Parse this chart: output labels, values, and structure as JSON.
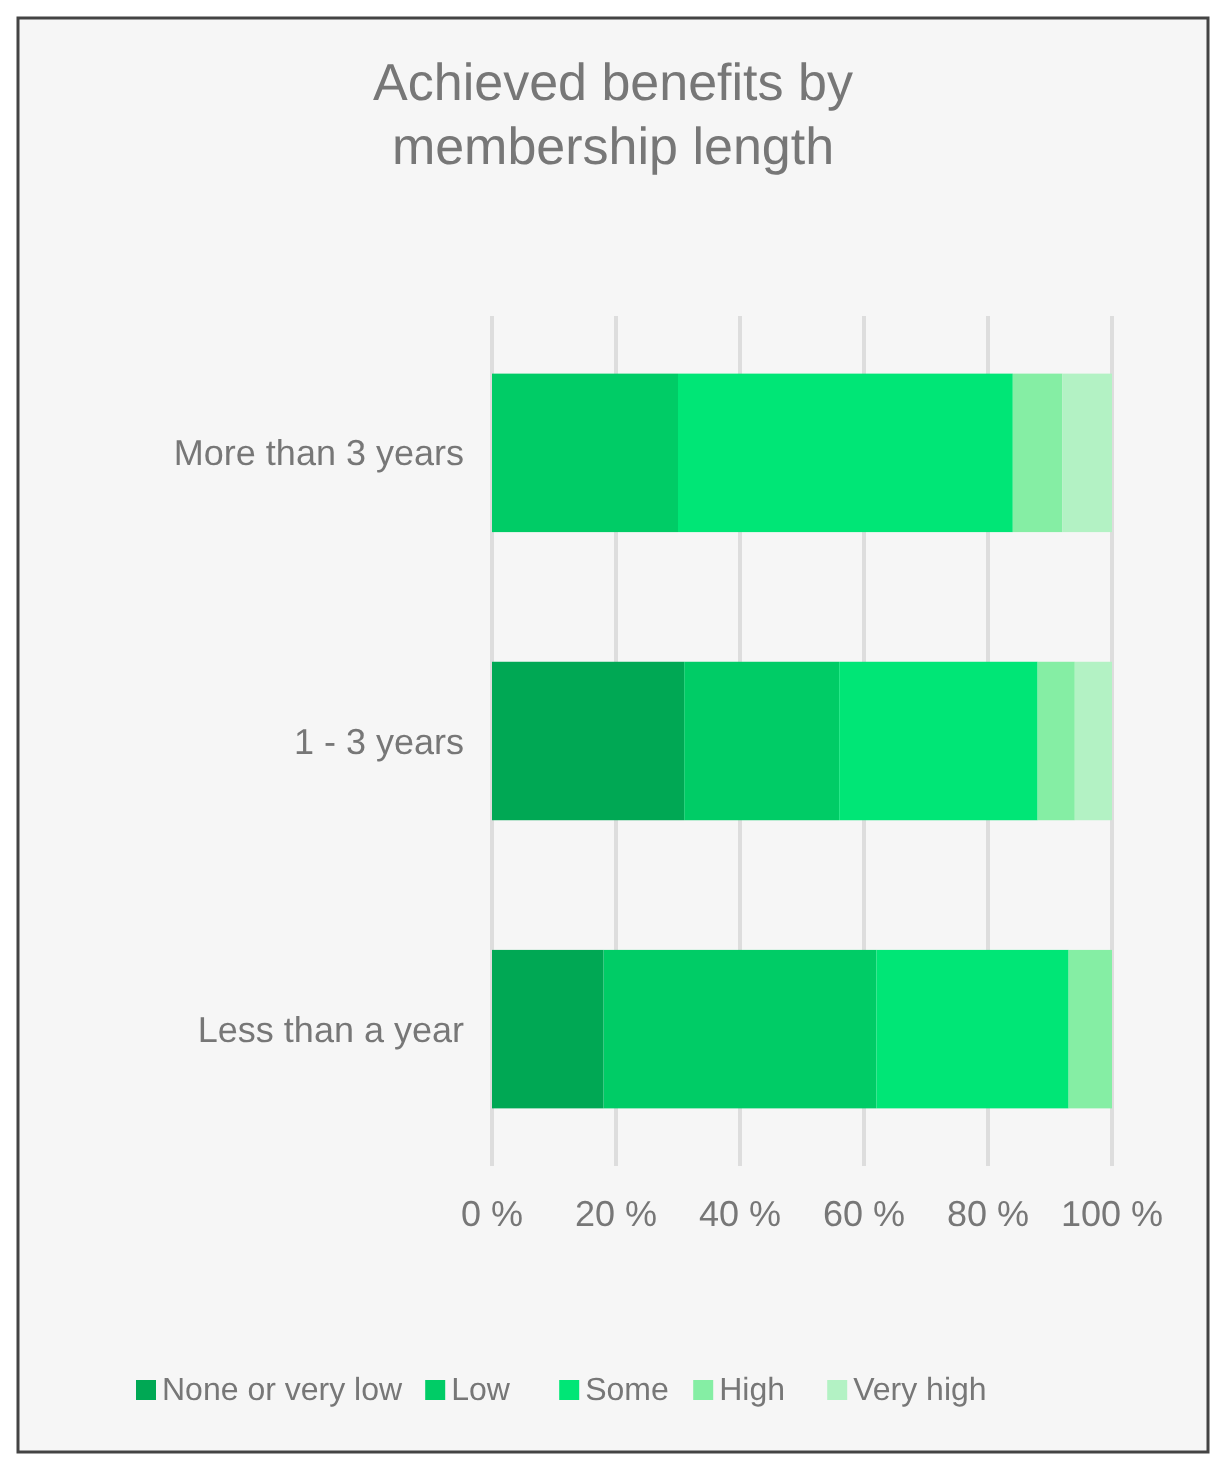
{
  "chart_data": {
    "type": "bar",
    "orientation": "horizontal",
    "stacked": true,
    "title": "Achieved benefits by membership length",
    "categories": [
      "More than 3 years",
      "1 - 3 years",
      "Less than a year"
    ],
    "series": [
      {
        "name": "None or very low",
        "color": "#00a854",
        "values": [
          0,
          31,
          18
        ]
      },
      {
        "name": "Low",
        "color": "#00cc66",
        "values": [
          30,
          25,
          44
        ]
      },
      {
        "name": "Some",
        "color": "#00e676",
        "values": [
          54,
          32,
          31
        ]
      },
      {
        "name": "High",
        "color": "#85eea4",
        "values": [
          8,
          6,
          7
        ]
      },
      {
        "name": "Very high",
        "color": "#b3f2c4",
        "values": [
          8,
          6,
          0
        ]
      }
    ],
    "xlim": [
      0,
      100
    ],
    "xticks": [
      {
        "value": 0,
        "label": "0 %"
      },
      {
        "value": 20,
        "label": "20 %"
      },
      {
        "value": 40,
        "label": "40 %"
      },
      {
        "value": 60,
        "label": "60 %"
      },
      {
        "value": 80,
        "label": "80 %"
      },
      {
        "value": 100,
        "label": "100 %"
      }
    ],
    "grid": "x",
    "legend": "bottom"
  }
}
